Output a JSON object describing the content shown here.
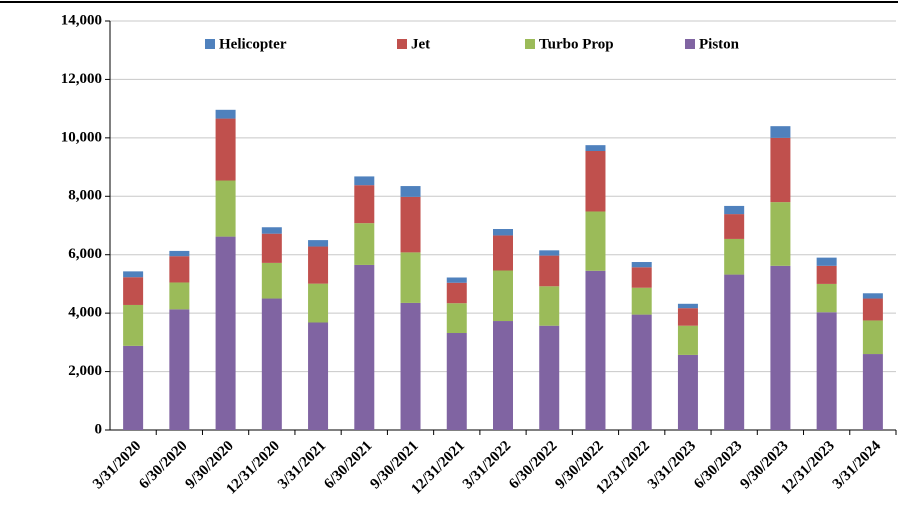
{
  "chart_data": {
    "type": "bar",
    "stacked": true,
    "categories": [
      "3/31/2020",
      "6/30/2020",
      "9/30/2020",
      "12/31/2020",
      "3/31/2021",
      "6/30/2021",
      "9/30/2021",
      "12/31/2021",
      "3/31/2022",
      "6/30/2022",
      "9/30/2022",
      "12/31/2022",
      "3/31/2023",
      "6/30/2023",
      "9/30/2023",
      "12/31/2023",
      "3/31/2024"
    ],
    "series": [
      {
        "name": "Helicopter",
        "color": "#4f81bd",
        "values": [
          200,
          180,
          300,
          220,
          220,
          300,
          370,
          180,
          220,
          180,
          200,
          180,
          150,
          280,
          400,
          280,
          180
        ]
      },
      {
        "name": "Jet",
        "color": "#c0504d",
        "values": [
          950,
          900,
          2120,
          1000,
          1270,
          1300,
          1900,
          700,
          1200,
          1050,
          2070,
          700,
          600,
          850,
          2200,
          620,
          750
        ]
      },
      {
        "name": "Turbo Prop",
        "color": "#9bbb59",
        "values": [
          1400,
          920,
          1920,
          1220,
          1330,
          1430,
          1730,
          1020,
          1730,
          1350,
          2030,
          920,
          1000,
          1220,
          2180,
          970,
          1150
        ]
      },
      {
        "name": "Piston",
        "color": "#8064a2",
        "values": [
          2880,
          4130,
          6620,
          4500,
          3680,
          5650,
          4350,
          3320,
          3730,
          3570,
          5450,
          3950,
          2570,
          5320,
          5620,
          4030,
          2600
        ]
      }
    ],
    "ylim": [
      0,
      14000
    ],
    "yticks": [
      0,
      {
        "value": 2000,
        "label": "2,000"
      },
      {
        "value": 4000,
        "label": "4,000"
      },
      {
        "value": 6000,
        "label": "6,000"
      },
      {
        "value": 8000,
        "label": "8,000"
      },
      {
        "value": 10000,
        "label": "10,000"
      },
      {
        "value": 12000,
        "label": "12,000"
      },
      {
        "value": 14000,
        "label": "14,000"
      }
    ],
    "grid": true,
    "legend": "top"
  }
}
